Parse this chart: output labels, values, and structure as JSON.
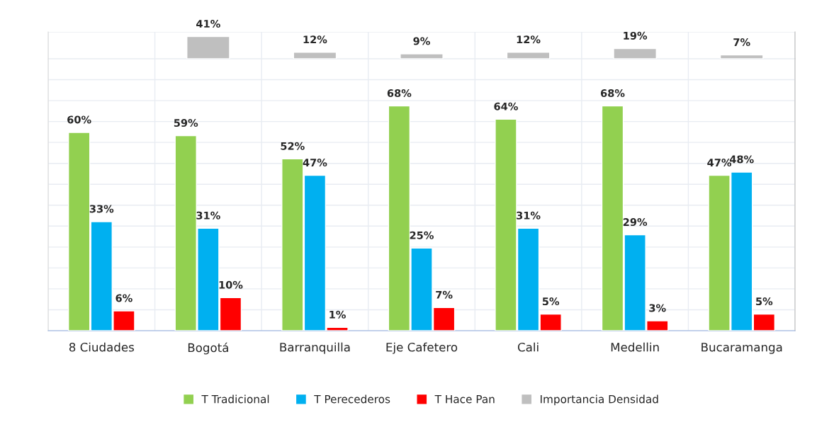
{
  "chart_data": [
    {
      "type": "bar",
      "categories": [
        null,
        null,
        null,
        null,
        null,
        null
      ],
      "series": [
        {
          "name": "Importancia Densidad",
          "color": "#bfbfbf",
          "values": [
            41,
            12,
            9,
            12,
            19,
            7
          ],
          "value_labels": [
            "41%",
            "12%",
            "9%",
            "12%",
            "19%",
            "7%"
          ]
        }
      ],
      "tick_labels": false,
      "grid": true
    },
    {
      "type": "bar",
      "categories": [
        "8 Ciudades",
        "Bogotá",
        "Barranquilla",
        "Eje Cafetero",
        "Cali",
        "Medellin",
        "Bucaramanga"
      ],
      "series": [
        {
          "name": "T Tradicional",
          "color": "#92d050",
          "values": [
            60,
            59,
            52,
            68,
            64,
            68,
            47
          ],
          "value_labels": [
            "60%",
            "59%",
            "52%",
            "68%",
            "64%",
            "68%",
            "47%"
          ]
        },
        {
          "name": "T Perecederos",
          "color": "#00b0f0",
          "values": [
            33,
            31,
            47,
            25,
            31,
            29,
            48
          ],
          "value_labels": [
            "33%",
            "31%",
            "47%",
            "25%",
            "31%",
            "29%",
            "48%"
          ]
        },
        {
          "name": "T Hace Pan",
          "color": "#ff0000",
          "values": [
            6,
            10,
            1,
            7,
            5,
            3,
            5
          ],
          "value_labels": [
            "6%",
            "10%",
            "1%",
            "7%",
            "5%",
            "3%",
            "5%"
          ]
        }
      ],
      "tick_labels": "x",
      "grid": true,
      "legend": "bottom"
    }
  ]
}
